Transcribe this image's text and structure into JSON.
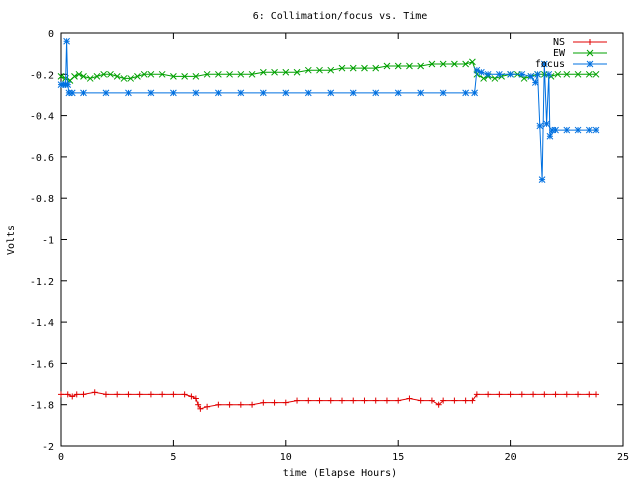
{
  "chart_data": {
    "type": "line",
    "title": "6: Collimation/focus vs. Time",
    "xlabel": "time (Elapse Hours)",
    "ylabel": "Volts",
    "xlim": [
      0,
      25
    ],
    "ylim": [
      -2,
      0
    ],
    "x_ticks": [
      0,
      5,
      10,
      15,
      20,
      25
    ],
    "y_ticks": [
      0,
      -0.2,
      -0.4,
      -0.6,
      -0.8,
      -1,
      -1.2,
      -1.4,
      -1.6,
      -1.8,
      -2
    ],
    "x_tick_labels": [
      "0",
      "5",
      "10",
      "15",
      "20",
      "25"
    ],
    "y_tick_labels": [
      "0",
      "-0.2",
      "-0.4",
      "-0.6",
      "-0.8",
      "-1",
      "-1.2",
      "-1.4",
      "-1.6",
      "-1.8",
      "-2"
    ],
    "grid": false,
    "legend_position": "top-right",
    "series": [
      {
        "name": "NS",
        "color": "#e00000",
        "marker": "+",
        "points": [
          [
            0,
            -1.75
          ],
          [
            0.3,
            -1.75
          ],
          [
            0.5,
            -1.76
          ],
          [
            0.7,
            -1.75
          ],
          [
            1.0,
            -1.75
          ],
          [
            1.5,
            -1.74
          ],
          [
            2.0,
            -1.75
          ],
          [
            2.5,
            -1.75
          ],
          [
            3.0,
            -1.75
          ],
          [
            3.5,
            -1.75
          ],
          [
            4.0,
            -1.75
          ],
          [
            4.5,
            -1.75
          ],
          [
            5.0,
            -1.75
          ],
          [
            5.5,
            -1.75
          ],
          [
            5.8,
            -1.76
          ],
          [
            6.0,
            -1.77
          ],
          [
            6.1,
            -1.8
          ],
          [
            6.2,
            -1.82
          ],
          [
            6.5,
            -1.81
          ],
          [
            7.0,
            -1.8
          ],
          [
            7.5,
            -1.8
          ],
          [
            8.0,
            -1.8
          ],
          [
            8.5,
            -1.8
          ],
          [
            9.0,
            -1.79
          ],
          [
            9.5,
            -1.79
          ],
          [
            10.0,
            -1.79
          ],
          [
            10.5,
            -1.78
          ],
          [
            11.0,
            -1.78
          ],
          [
            11.5,
            -1.78
          ],
          [
            12.0,
            -1.78
          ],
          [
            12.5,
            -1.78
          ],
          [
            13.0,
            -1.78
          ],
          [
            13.5,
            -1.78
          ],
          [
            14.0,
            -1.78
          ],
          [
            14.5,
            -1.78
          ],
          [
            15.0,
            -1.78
          ],
          [
            15.5,
            -1.77
          ],
          [
            16.0,
            -1.78
          ],
          [
            16.5,
            -1.78
          ],
          [
            16.8,
            -1.8
          ],
          [
            17.0,
            -1.78
          ],
          [
            17.5,
            -1.78
          ],
          [
            18.0,
            -1.78
          ],
          [
            18.3,
            -1.78
          ],
          [
            18.5,
            -1.75
          ],
          [
            19.0,
            -1.75
          ],
          [
            19.5,
            -1.75
          ],
          [
            20.0,
            -1.75
          ],
          [
            20.5,
            -1.75
          ],
          [
            21.0,
            -1.75
          ],
          [
            21.5,
            -1.75
          ],
          [
            22.0,
            -1.75
          ],
          [
            22.5,
            -1.75
          ],
          [
            23.0,
            -1.75
          ],
          [
            23.5,
            -1.75
          ],
          [
            23.8,
            -1.75
          ]
        ]
      },
      {
        "name": "EW",
        "color": "#00a000",
        "marker": "x",
        "points": [
          [
            0,
            -0.21
          ],
          [
            0.2,
            -0.22
          ],
          [
            0.4,
            -0.23
          ],
          [
            0.6,
            -0.21
          ],
          [
            0.8,
            -0.2
          ],
          [
            1.0,
            -0.21
          ],
          [
            1.3,
            -0.22
          ],
          [
            1.6,
            -0.21
          ],
          [
            1.9,
            -0.2
          ],
          [
            2.2,
            -0.2
          ],
          [
            2.5,
            -0.21
          ],
          [
            2.8,
            -0.22
          ],
          [
            3.1,
            -0.22
          ],
          [
            3.4,
            -0.21
          ],
          [
            3.7,
            -0.2
          ],
          [
            4.0,
            -0.2
          ],
          [
            4.5,
            -0.2
          ],
          [
            5.0,
            -0.21
          ],
          [
            5.5,
            -0.21
          ],
          [
            6.0,
            -0.21
          ],
          [
            6.5,
            -0.2
          ],
          [
            7.0,
            -0.2
          ],
          [
            7.5,
            -0.2
          ],
          [
            8.0,
            -0.2
          ],
          [
            8.5,
            -0.2
          ],
          [
            9.0,
            -0.19
          ],
          [
            9.5,
            -0.19
          ],
          [
            10.0,
            -0.19
          ],
          [
            10.5,
            -0.19
          ],
          [
            11.0,
            -0.18
          ],
          [
            11.5,
            -0.18
          ],
          [
            12.0,
            -0.18
          ],
          [
            12.5,
            -0.17
          ],
          [
            13.0,
            -0.17
          ],
          [
            13.5,
            -0.17
          ],
          [
            14.0,
            -0.17
          ],
          [
            14.5,
            -0.16
          ],
          [
            15.0,
            -0.16
          ],
          [
            15.5,
            -0.16
          ],
          [
            16.0,
            -0.16
          ],
          [
            16.5,
            -0.15
          ],
          [
            17.0,
            -0.15
          ],
          [
            17.5,
            -0.15
          ],
          [
            18.0,
            -0.15
          ],
          [
            18.3,
            -0.14
          ],
          [
            18.5,
            -0.2
          ],
          [
            18.8,
            -0.22
          ],
          [
            19.0,
            -0.21
          ],
          [
            19.3,
            -0.22
          ],
          [
            19.6,
            -0.21
          ],
          [
            20.0,
            -0.2
          ],
          [
            20.3,
            -0.2
          ],
          [
            20.6,
            -0.22
          ],
          [
            20.9,
            -0.21
          ],
          [
            21.2,
            -0.2
          ],
          [
            21.5,
            -0.2
          ],
          [
            21.8,
            -0.21
          ],
          [
            22.1,
            -0.2
          ],
          [
            22.5,
            -0.2
          ],
          [
            23.0,
            -0.2
          ],
          [
            23.5,
            -0.2
          ],
          [
            23.8,
            -0.2
          ]
        ]
      },
      {
        "name": "focus",
        "color": "#0070e0",
        "marker": "*",
        "points": [
          [
            0,
            -0.25
          ],
          [
            0.1,
            -0.25
          ],
          [
            0.2,
            -0.25
          ],
          [
            0.25,
            -0.04
          ],
          [
            0.3,
            -0.25
          ],
          [
            0.35,
            -0.29
          ],
          [
            0.5,
            -0.29
          ],
          [
            1.0,
            -0.29
          ],
          [
            2.0,
            -0.29
          ],
          [
            3.0,
            -0.29
          ],
          [
            4.0,
            -0.29
          ],
          [
            5.0,
            -0.29
          ],
          [
            6.0,
            -0.29
          ],
          [
            7.0,
            -0.29
          ],
          [
            8.0,
            -0.29
          ],
          [
            9.0,
            -0.29
          ],
          [
            10.0,
            -0.29
          ],
          [
            11.0,
            -0.29
          ],
          [
            12.0,
            -0.29
          ],
          [
            13.0,
            -0.29
          ],
          [
            14.0,
            -0.29
          ],
          [
            15.0,
            -0.29
          ],
          [
            16.0,
            -0.29
          ],
          [
            17.0,
            -0.29
          ],
          [
            18.0,
            -0.29
          ],
          [
            18.4,
            -0.29
          ],
          [
            18.5,
            -0.18
          ],
          [
            18.7,
            -0.19
          ],
          [
            19.0,
            -0.2
          ],
          [
            19.5,
            -0.2
          ],
          [
            20.0,
            -0.2
          ],
          [
            20.5,
            -0.2
          ],
          [
            20.9,
            -0.21
          ],
          [
            21.1,
            -0.24
          ],
          [
            21.2,
            -0.2
          ],
          [
            21.3,
            -0.45
          ],
          [
            21.4,
            -0.71
          ],
          [
            21.5,
            -0.15
          ],
          [
            21.6,
            -0.44
          ],
          [
            21.7,
            -0.2
          ],
          [
            21.75,
            -0.5
          ],
          [
            21.85,
            -0.47
          ],
          [
            22.0,
            -0.47
          ],
          [
            22.5,
            -0.47
          ],
          [
            23.0,
            -0.47
          ],
          [
            23.5,
            -0.47
          ],
          [
            23.8,
            -0.47
          ]
        ]
      }
    ]
  }
}
